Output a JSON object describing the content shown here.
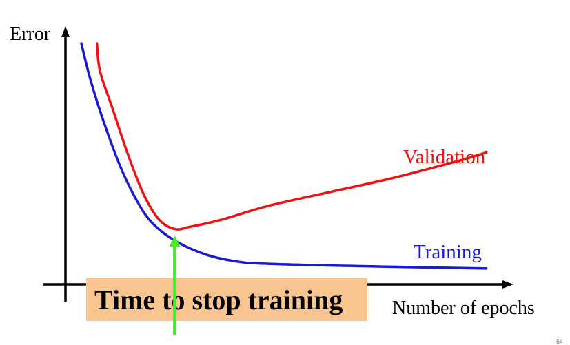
{
  "chart_data": {
    "type": "line",
    "ylabel": "Error",
    "xlabel": "Number of epochs",
    "grid": false,
    "series": [
      {
        "name": "Validation",
        "color": "#ee1111",
        "points": [
          [
            1.0,
            100
          ],
          [
            1.2,
            88
          ],
          [
            2.0,
            72
          ],
          [
            3.0,
            52
          ],
          [
            4.0,
            35
          ],
          [
            5.0,
            24
          ],
          [
            6.0,
            20
          ],
          [
            7.0,
            21
          ],
          [
            9.0,
            24
          ],
          [
            12.0,
            30
          ],
          [
            16.0,
            36
          ],
          [
            20.0,
            42
          ],
          [
            24.0,
            49
          ],
          [
            26.0,
            53
          ]
        ]
      },
      {
        "name": "Training",
        "color": "#1a1ad4",
        "points": [
          [
            0.0,
            100
          ],
          [
            0.6,
            84
          ],
          [
            1.5,
            65
          ],
          [
            2.5,
            47
          ],
          [
            3.5,
            33
          ],
          [
            4.5,
            23
          ],
          [
            6.0,
            15
          ],
          [
            8.0,
            9
          ],
          [
            10.0,
            6
          ],
          [
            12.0,
            5
          ],
          [
            18.0,
            4
          ],
          [
            22.0,
            3.5
          ],
          [
            26.0,
            3
          ]
        ]
      }
    ],
    "annotation": {
      "text": "Time to stop training",
      "x": 6.0,
      "arrow_color": "#44ee22",
      "box_color": "#f8c48f"
    }
  },
  "page_number": "64"
}
